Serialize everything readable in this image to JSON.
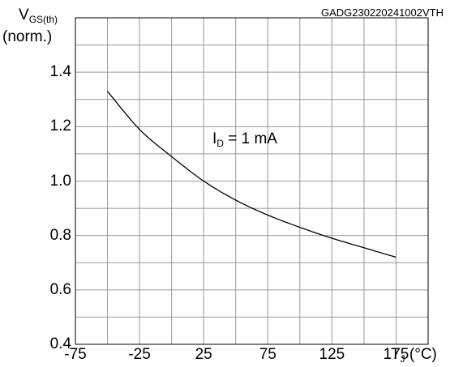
{
  "figure_code": "GADG230220241002VTH",
  "chart_data": {
    "type": "line",
    "ylabel_main": "V",
    "ylabel_sub": "GS(th)",
    "ylabel_line2": "(norm.)",
    "xlabel_main": "T",
    "xlabel_sub": "J",
    "xlabel_unit": " (°C)",
    "annotation_main": "I",
    "annotation_sub": "D",
    "annotation_value": " = 1 mA",
    "xlim": [
      -75,
      200
    ],
    "ylim": [
      0.4,
      1.6
    ],
    "x_ticks": [
      -75,
      -25,
      25,
      75,
      125,
      175
    ],
    "x_tick_labels": [
      "-75",
      "-25",
      "25",
      "75",
      "125",
      "175"
    ],
    "y_ticks": [
      0.4,
      0.6,
      0.8,
      1.0,
      1.2,
      1.4
    ],
    "y_tick_labels": [
      "0.4",
      "0.6",
      "0.8",
      "1.0",
      "1.2",
      "1.4"
    ],
    "grid": true,
    "series": [
      {
        "x": [
          -50,
          -25,
          0,
          25,
          50,
          75,
          100,
          125,
          150,
          175
        ],
        "y": [
          1.33,
          1.19,
          1.09,
          1.0,
          0.93,
          0.875,
          0.83,
          0.79,
          0.755,
          0.72
        ]
      }
    ],
    "line_color": "#000000",
    "grid_color": "#999999"
  }
}
